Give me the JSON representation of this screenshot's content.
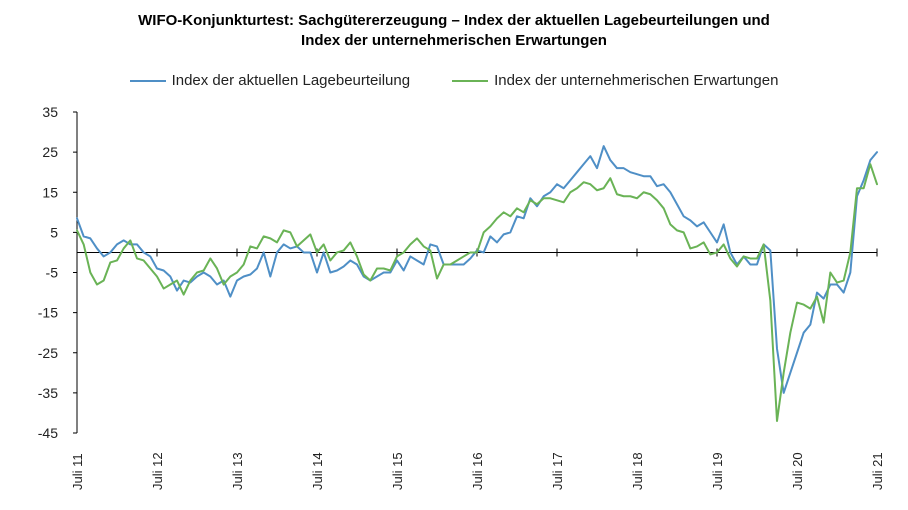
{
  "chart_data": {
    "type": "line",
    "title": "WIFO-Konjunkturtest: Sachgütererzeugung – Index der aktuellen Lagebeurteilungen und",
    "subtitle": "Index der unternehmerischen Erwartungen",
    "xlabel": "",
    "ylabel": "",
    "ylim": [
      -45,
      35
    ],
    "yticks": [
      "35",
      "25",
      "15",
      "5",
      "-5",
      "-15",
      "-25",
      "-35",
      "-45"
    ],
    "xticks": [
      "Juli 11",
      "Juli 12",
      "Juli 13",
      "Juli 14",
      "Juli 15",
      "Juli 16",
      "Juli 17",
      "Juli 18",
      "Juli 19",
      "Juli 20",
      "Juli 21"
    ],
    "x_start": "2011-07",
    "x_end": "2021-07",
    "grid": false,
    "legend_position": "top",
    "series": [
      {
        "name": "Index der aktuellen Lagebeurteilung",
        "color": "#4f8fc6",
        "values": [
          8.5,
          4,
          3.5,
          1,
          -1,
          0,
          2,
          3,
          2,
          2,
          0,
          -1,
          -4,
          -4.5,
          -6,
          -9.5,
          -7,
          -7.5,
          -6,
          -5,
          -6,
          -8,
          -7,
          -11,
          -7,
          -6,
          -5.5,
          -4,
          0,
          -6,
          0,
          2,
          1,
          1.5,
          0,
          0,
          -5,
          0,
          -5,
          -4.5,
          -3.5,
          -2,
          -3,
          -6,
          -7,
          -6,
          -5,
          -5,
          -2,
          -4.5,
          -1,
          -2,
          -3,
          2,
          1.5,
          -3,
          -3,
          -3,
          -3,
          -1.5,
          0.5,
          0,
          4,
          2.5,
          4.5,
          5,
          9,
          8.5,
          13.5,
          11.5,
          14,
          15,
          17,
          16,
          18,
          20,
          22,
          24,
          21,
          26.5,
          23,
          21,
          21,
          20,
          19.5,
          19,
          19,
          16.5,
          17,
          15,
          12,
          9,
          8,
          6.5,
          7.5,
          5,
          2.5,
          7,
          0,
          -3,
          -1,
          -3,
          -3,
          2,
          0.5,
          -24,
          -35,
          -30,
          -25,
          -20,
          -18,
          -10,
          -11.5,
          -8,
          -8,
          -10,
          -5,
          14,
          18,
          23,
          25
        ]
      },
      {
        "name": "Index der unternehmerischen Erwartungen",
        "color": "#6ab356",
        "values": [
          5.5,
          2,
          -5,
          -8,
          -7,
          -2.5,
          -2,
          1,
          3,
          -1.5,
          -2,
          -4,
          -6,
          -9,
          -8,
          -7,
          -10.5,
          -7,
          -5,
          -4.5,
          -1.5,
          -4,
          -8,
          -6,
          -5,
          -3,
          1.5,
          1,
          4,
          3.5,
          2.5,
          5.5,
          5,
          1.5,
          3,
          4.5,
          0,
          2,
          -2,
          0,
          0.5,
          2.5,
          -1,
          -5.5,
          -7,
          -4,
          -4,
          -4.5,
          -1,
          0,
          2,
          3.5,
          1.5,
          0.5,
          -6.5,
          -3,
          -3,
          -2,
          -1,
          0,
          0,
          5,
          6.5,
          8.5,
          10,
          9,
          11,
          10,
          13,
          12,
          13.5,
          13.5,
          13,
          12.5,
          15,
          16,
          17.5,
          17,
          15.5,
          16,
          18.5,
          14.5,
          14,
          14,
          13.5,
          15,
          14.5,
          13,
          11,
          7,
          5.5,
          5,
          1,
          1.5,
          2.5,
          -0.5,
          0,
          2,
          -1.5,
          -3.5,
          -1,
          -1.5,
          -1.5,
          2,
          -12,
          -42,
          -30,
          -20,
          -12.5,
          -13,
          -14,
          -11,
          -17.5,
          -5,
          -7.5,
          -7,
          0,
          16,
          16,
          22,
          17
        ]
      }
    ]
  }
}
